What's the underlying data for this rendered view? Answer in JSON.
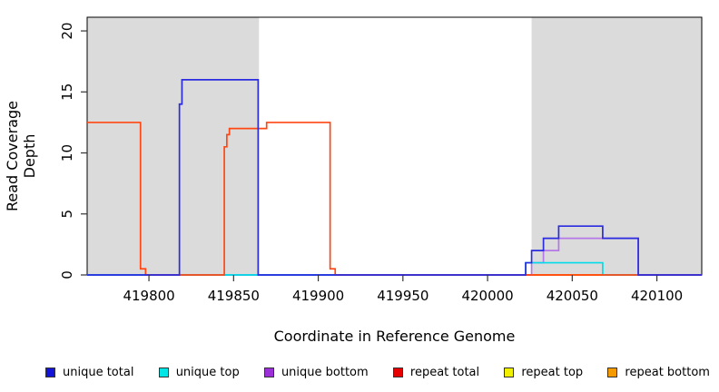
{
  "chart_data": {
    "type": "line",
    "step": true,
    "title": "",
    "xlabel": "Coordinate in Reference Genome",
    "ylabel": "Read Coverage Depth",
    "xlim": [
      419763.5,
      420126.5
    ],
    "ylim": [
      0,
      21.12
    ],
    "xticks": [
      419800,
      419850,
      419900,
      419950,
      420000,
      420050,
      420100
    ],
    "yticks": [
      0,
      5,
      10,
      15,
      20
    ],
    "grid": false,
    "background_color": "#ffffff",
    "shaded_regions": [
      {
        "x0": 419763.5,
        "x1": 419865,
        "color": "#dbdbdb"
      },
      {
        "x0": 420026,
        "x1": 420126.5,
        "color": "#dbdbdb"
      }
    ],
    "zero_line_segments": [
      {
        "x0": 419763.5,
        "x1": 419818,
        "color": "#5c52e2"
      },
      {
        "x0": 419818,
        "x1": 419865,
        "color": "#5fe5a0"
      },
      {
        "x0": 419865,
        "x1": 420026,
        "color": "#4b49e6"
      },
      {
        "x0": 420026,
        "x1": 420068,
        "color": "#ffa500"
      },
      {
        "x0": 420068,
        "x1": 420089,
        "color": "#5fe5a0"
      },
      {
        "x0": 420089,
        "x1": 420126.5,
        "color": "#8e76e2"
      }
    ],
    "series": [
      {
        "name": "unique bottom",
        "color": "#b678e8",
        "draw": true,
        "points": [
          [
            419763.5,
            0
          ],
          [
            420026,
            1
          ],
          [
            420033,
            2
          ],
          [
            420042,
            3
          ],
          [
            420089,
            0
          ],
          [
            420126.5,
            0
          ]
        ]
      },
      {
        "name": "unique top",
        "color": "#00dce8",
        "draw": true,
        "points": [
          [
            419763.5,
            0
          ],
          [
            420022.5,
            1
          ],
          [
            420068,
            0
          ],
          [
            420126.5,
            0
          ]
        ]
      },
      {
        "name": "repeat top",
        "color": "#f0f000",
        "draw": false,
        "points": [
          [
            419763.5,
            0
          ],
          [
            420126.5,
            0
          ]
        ]
      },
      {
        "name": "repeat bottom",
        "color": "#ffa500",
        "draw": false,
        "points": [
          [
            419763.5,
            0
          ],
          [
            420126.5,
            0
          ]
        ]
      },
      {
        "name": "repeat total",
        "color": "#ff4713",
        "draw": true,
        "points": [
          [
            419763.5,
            12.5
          ],
          [
            419795,
            0.5
          ],
          [
            419798,
            0
          ],
          [
            419844.5,
            10.5
          ],
          [
            419846,
            11.5
          ],
          [
            419847.5,
            12
          ],
          [
            419869.5,
            12.5
          ],
          [
            419907,
            0.5
          ],
          [
            419910,
            0
          ],
          [
            420126.5,
            0
          ]
        ]
      },
      {
        "name": "unique total",
        "color": "#2b2be0",
        "draw": true,
        "points": [
          [
            419763.5,
            0
          ],
          [
            419818,
            14
          ],
          [
            419819.5,
            16
          ],
          [
            419864.5,
            0
          ],
          [
            420022.5,
            1
          ],
          [
            420026,
            2
          ],
          [
            420033,
            3
          ],
          [
            420042,
            4
          ],
          [
            420068,
            3
          ],
          [
            420089,
            0
          ],
          [
            420126.5,
            0
          ]
        ]
      }
    ],
    "legend": [
      {
        "label": "unique total",
        "color": "#1414d8"
      },
      {
        "label": "unique top",
        "color": "#00e5e5"
      },
      {
        "label": "unique bottom",
        "color": "#9b30d9"
      },
      {
        "label": "repeat total",
        "color": "#e60000"
      },
      {
        "label": "repeat top",
        "color": "#f0f000"
      },
      {
        "label": "repeat bottom",
        "color": "#f59a00"
      }
    ]
  }
}
